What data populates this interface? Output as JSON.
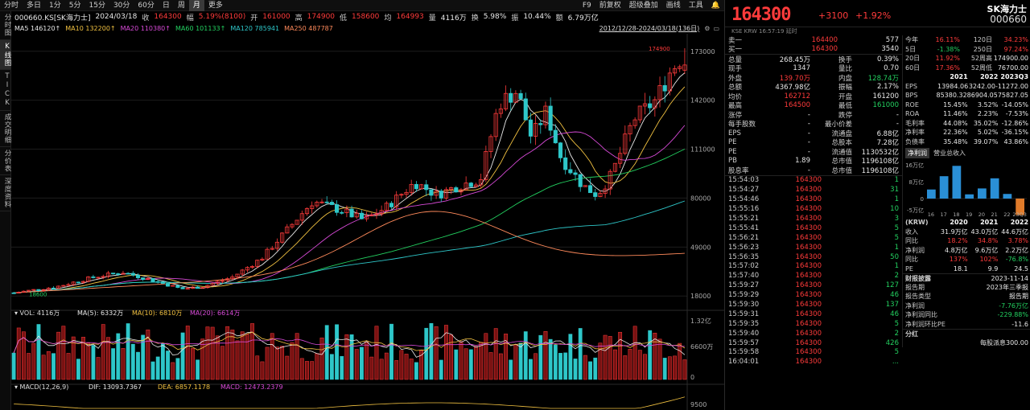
{
  "toolbar": {
    "left": [
      "分时",
      "多日",
      "1分",
      "5分",
      "15分",
      "30分",
      "60分",
      "日",
      "周",
      "月",
      "更多"
    ],
    "active": "月",
    "right": [
      "F9",
      "前复权",
      "超级叠加",
      "画线",
      "工具"
    ]
  },
  "side_tabs": [
    "分时图",
    "K线图",
    "TICK",
    "成交明细",
    "分价表",
    "深度资料"
  ],
  "side_active": "K线图",
  "info": {
    "code": "000660.KS[SK海力士]",
    "date": "2024/03/18",
    "close_label": "收",
    "close": "164300",
    "amp_label": "幅",
    "amp": "5.19%(8100)",
    "open_label": "开",
    "open": "161000",
    "high_label": "高",
    "high": "174900",
    "low_label": "低",
    "low": "158600",
    "avg_label": "均",
    "avg": "164993",
    "vol_label": "量",
    "vol": "4116万",
    "turn_label": "换",
    "turn": "5.98%",
    "swing_label": "振",
    "swing": "10.44%",
    "amount_label": "额",
    "amount": "6.79万亿"
  },
  "ma": [
    {
      "label": "MA5",
      "value": "146120↑",
      "color": "#e8e8e8"
    },
    {
      "label": "MA10",
      "value": "132200↑",
      "color": "#f0c040"
    },
    {
      "label": "MA20",
      "value": "110380↑",
      "color": "#d84ad8"
    },
    {
      "label": "MA60",
      "value": "101133↑",
      "color": "#23d160"
    },
    {
      "label": "MA120",
      "value": "785941",
      "color": "#2ec7c9"
    },
    {
      "label": "MA250",
      "value": "487787",
      "color": "#ff8a5b"
    }
  ],
  "range": "2012/12/28-2024/03/18(136日)",
  "chart": {
    "price_ticks": [
      "173000",
      "142000",
      "111000",
      "80000",
      "49000",
      "18000"
    ],
    "high_mark": "174900",
    "low_mark": "18600",
    "vol_label": "VOL: 4116万",
    "vol_ma5": "MA(5): 6332万",
    "vol_ma10": "MA(10): 6810万",
    "vol_ma20": "MA(20): 6614万",
    "vol_ticks": [
      "1.32亿",
      "6600万",
      "0"
    ],
    "macd_label": "MACD(12,26,9)",
    "macd_dif": "DIF: 13093.7367",
    "macd_dea": "DEA: 6857.1178",
    "macd_val": "MACD: 12473.2379",
    "macd_tick": "9500"
  },
  "panel": {
    "price": "164300",
    "change": "+3100",
    "pct": "+1.92%",
    "name": "SK海力士",
    "code": "000660",
    "sub": "KSE   KRW   16:57:19   延时",
    "quote_rows": [
      {
        "a": "卖一",
        "b": "164400",
        "bc": "red",
        "d": "577",
        "dc": "white"
      },
      {
        "a": "买一",
        "b": "164300",
        "bc": "red",
        "d": "3540",
        "dc": "white"
      }
    ],
    "stats": [
      {
        "a": "总量",
        "b": "268.45万",
        "bc": "white",
        "c": "换手",
        "d": "0.39%",
        "dc": "white"
      },
      {
        "a": "现手",
        "b": "1347",
        "bc": "white",
        "c": "量比",
        "d": "0.70",
        "dc": "white"
      },
      {
        "a": "外盘",
        "b": "139.70万",
        "bc": "red",
        "c": "内盘",
        "d": "128.74万",
        "dc": "green"
      },
      {
        "a": "总额",
        "b": "4367.98亿",
        "bc": "white",
        "c": "振幅",
        "d": "2.17%",
        "dc": "white"
      },
      {
        "a": "均价",
        "b": "162712",
        "bc": "red",
        "c": "开盘",
        "d": "161200",
        "dc": "white"
      },
      {
        "a": "最高",
        "b": "164500",
        "bc": "red",
        "c": "最低",
        "d": "161000",
        "dc": "green"
      },
      {
        "a": "涨停",
        "b": "-",
        "bc": "white",
        "c": "跌停",
        "d": "-",
        "dc": "white"
      },
      {
        "a": "每手股数",
        "b": "-",
        "bc": "white",
        "c": "最小价差",
        "d": "-",
        "dc": "white"
      },
      {
        "a": "EPS",
        "b": "-",
        "bc": "white",
        "c": "流通盘",
        "d": "6.88亿",
        "dc": "white"
      },
      {
        "a": "PE",
        "b": "-",
        "bc": "white",
        "c": "总股本",
        "d": "7.28亿",
        "dc": "white"
      },
      {
        "a": "PE",
        "b": "-",
        "bc": "white",
        "c": "流通值",
        "d": "1130532亿",
        "dc": "white"
      },
      {
        "a": "PB",
        "b": "1.89",
        "bc": "white",
        "c": "总市值",
        "d": "1196108亿",
        "dc": "white"
      },
      {
        "a": "股息率",
        "b": "-",
        "bc": "white",
        "c": "总市值",
        "d": "1196108亿",
        "dc": "white"
      }
    ],
    "trades": [
      {
        "t": "15:54:03",
        "p": "164300",
        "v": "1",
        "vc": "green"
      },
      {
        "t": "15:54:27",
        "p": "164300",
        "v": "31",
        "vc": "green"
      },
      {
        "t": "15:54:46",
        "p": "164300",
        "v": "1",
        "vc": "green"
      },
      {
        "t": "15:55:16",
        "p": "164300",
        "v": "10",
        "vc": "green"
      },
      {
        "t": "15:55:21",
        "p": "164300",
        "v": "3",
        "vc": "green"
      },
      {
        "t": "15:55:41",
        "p": "164300",
        "v": "5",
        "vc": "green"
      },
      {
        "t": "15:56:21",
        "p": "164300",
        "v": "5",
        "vc": "green"
      },
      {
        "t": "15:56:23",
        "p": "164300",
        "v": "1",
        "vc": "green"
      },
      {
        "t": "15:56:35",
        "p": "164300",
        "v": "50",
        "vc": "green"
      },
      {
        "t": "15:57:02",
        "p": "164300",
        "v": "1",
        "vc": "green"
      },
      {
        "t": "15:57:40",
        "p": "164300",
        "v": "2",
        "vc": "green"
      },
      {
        "t": "15:59:27",
        "p": "164300",
        "v": "127",
        "vc": "green"
      },
      {
        "t": "15:59:29",
        "p": "164300",
        "v": "46",
        "vc": "green"
      },
      {
        "t": "15:59:30",
        "p": "164300",
        "v": "137",
        "vc": "green"
      },
      {
        "t": "15:59:31",
        "p": "164300",
        "v": "46",
        "vc": "green"
      },
      {
        "t": "15:59:35",
        "p": "164300",
        "v": "5",
        "vc": "green"
      },
      {
        "t": "15:59:40",
        "p": "164300",
        "v": "2",
        "vc": "green"
      },
      {
        "t": "15:59:57",
        "p": "164300",
        "v": "426",
        "vc": "green"
      },
      {
        "t": "15:59:58",
        "p": "164300",
        "v": "5",
        "vc": "green"
      },
      {
        "t": "16:04:01",
        "p": "164300",
        "v": "...",
        "vc": "green"
      }
    ],
    "returns": [
      {
        "a": "今年",
        "b": "16.11%",
        "bc": "red",
        "c": "120日",
        "d": "34.23%",
        "dc": "red"
      },
      {
        "a": "5日",
        "b": "-1.38%",
        "bc": "green",
        "c": "250日",
        "d": "97.24%",
        "dc": "red"
      },
      {
        "a": "20日",
        "b": "11.92%",
        "bc": "red",
        "c": "52周高",
        "d": "174900.00",
        "dc": "white"
      },
      {
        "a": "60日",
        "b": "17.36%",
        "bc": "red",
        "c": "52周低",
        "d": "76700.00",
        "dc": "white"
      }
    ],
    "fin_head": [
      "2021",
      "2022",
      "2023Q3"
    ],
    "fin_rows": [
      {
        "a": "EPS",
        "b": "13984.06",
        "c": "3242.00",
        "d": "-11272.00",
        "bc": "white",
        "cc": "white",
        "dc": "white"
      },
      {
        "a": "BPS",
        "b": "85380.32",
        "c": "86904.05",
        "d": "75827.05",
        "bc": "white",
        "cc": "white",
        "dc": "white"
      },
      {
        "a": "ROE",
        "b": "15.45%",
        "c": "3.52%",
        "d": "-14.05%",
        "bc": "white",
        "cc": "white",
        "dc": "white"
      },
      {
        "a": "ROA",
        "b": "11.46%",
        "c": "2.23%",
        "d": "-7.53%",
        "bc": "white",
        "cc": "white",
        "dc": "white"
      },
      {
        "a": "毛利率",
        "b": "44.08%",
        "c": "35.02%",
        "d": "-12.86%",
        "bc": "white",
        "cc": "white",
        "dc": "white"
      },
      {
        "a": "净利率",
        "b": "22.36%",
        "c": "5.02%",
        "d": "-36.15%",
        "bc": "white",
        "cc": "white",
        "dc": "white"
      },
      {
        "a": "负债率",
        "b": "35.48%",
        "c": "39.07%",
        "d": "43.86%",
        "bc": "white",
        "cc": "white",
        "dc": "white"
      }
    ],
    "profit_tabs": [
      "净利润",
      "营业总收入"
    ],
    "profit_active": "净利润",
    "bar_ticks": [
      "16万亿",
      "8万亿",
      "0",
      "-5万亿"
    ],
    "bar_labels": [
      "16",
      "17",
      "18",
      "19",
      "20",
      "21",
      "22",
      "23Q3"
    ],
    "bar_values": [
      4.3,
      10.6,
      15.5,
      2.0,
      4.8,
      9.6,
      2.2,
      -7.8
    ],
    "income_unit": "(KRW)",
    "income_head": [
      "2020",
      "2021",
      "2022"
    ],
    "income_rows": [
      {
        "a": "收入",
        "b": "31.9万亿",
        "c": "43.0万亿",
        "d": "44.6万亿",
        "bc": "white",
        "cc": "white",
        "dc": "white"
      },
      {
        "a": "同比",
        "b": "18.2%",
        "c": "34.8%",
        "d": "3.78%",
        "bc": "red",
        "cc": "red",
        "dc": "red"
      },
      {
        "a": "净利润",
        "b": "4.8万亿",
        "c": "9.6万亿",
        "d": "2.2万亿",
        "bc": "white",
        "cc": "white",
        "dc": "white"
      },
      {
        "a": "同比",
        "b": "137%",
        "c": "102%",
        "d": "-76.8%",
        "bc": "red",
        "cc": "red",
        "dc": "green"
      },
      {
        "a": "PE",
        "b": "18.1",
        "c": "9.9",
        "d": "24.5",
        "bc": "white",
        "cc": "white",
        "dc": "white"
      }
    ],
    "report_title": "财报披露",
    "report_date": "2023-11-14",
    "report_rows": [
      {
        "a": "报告期",
        "d": "2023年三季报",
        "dc": "white"
      },
      {
        "a": "报告类型",
        "d": "报告期",
        "dc": "white"
      },
      {
        "a": "净利润",
        "d": "-7.76万亿",
        "dc": "green"
      },
      {
        "a": "净利润同比",
        "d": "-229.88%",
        "dc": "green"
      },
      {
        "a": "净利润环比PE",
        "d": "-11.6",
        "dc": "white"
      }
    ],
    "dividend_title": "分红",
    "dividend_text": "每股派息300.00"
  }
}
